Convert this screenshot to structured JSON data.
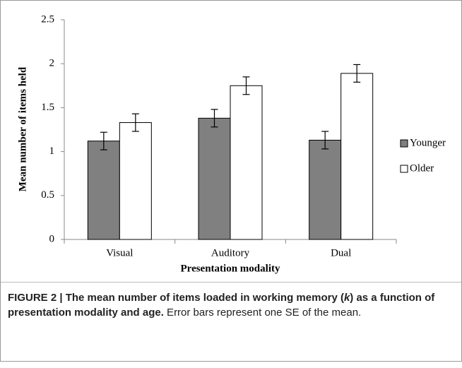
{
  "chart_data": {
    "type": "bar",
    "categories": [
      "Visual",
      "Auditory",
      "Dual"
    ],
    "series": [
      {
        "name": "Younger",
        "color": "#808080",
        "values": [
          1.12,
          1.38,
          1.13
        ],
        "errors": [
          0.1,
          0.1,
          0.1
        ]
      },
      {
        "name": "Older",
        "color": "#ffffff",
        "values": [
          1.33,
          1.75,
          1.89
        ],
        "errors": [
          0.1,
          0.1,
          0.1
        ]
      }
    ],
    "ylim": [
      0,
      2.5
    ],
    "yticks": [
      0,
      0.5,
      1,
      1.5,
      2,
      2.5
    ],
    "ylabel": "Mean number of items held",
    "xlabel": "Presentation modality",
    "legend": "right"
  },
  "caption": {
    "bold_before": "FIGURE 2 | The mean number of items loaded in working memory (",
    "bold_italic": "k",
    "bold_after": ") as a function of presentation modality and age.",
    "text": " Error bars represent one SE of the mean."
  }
}
